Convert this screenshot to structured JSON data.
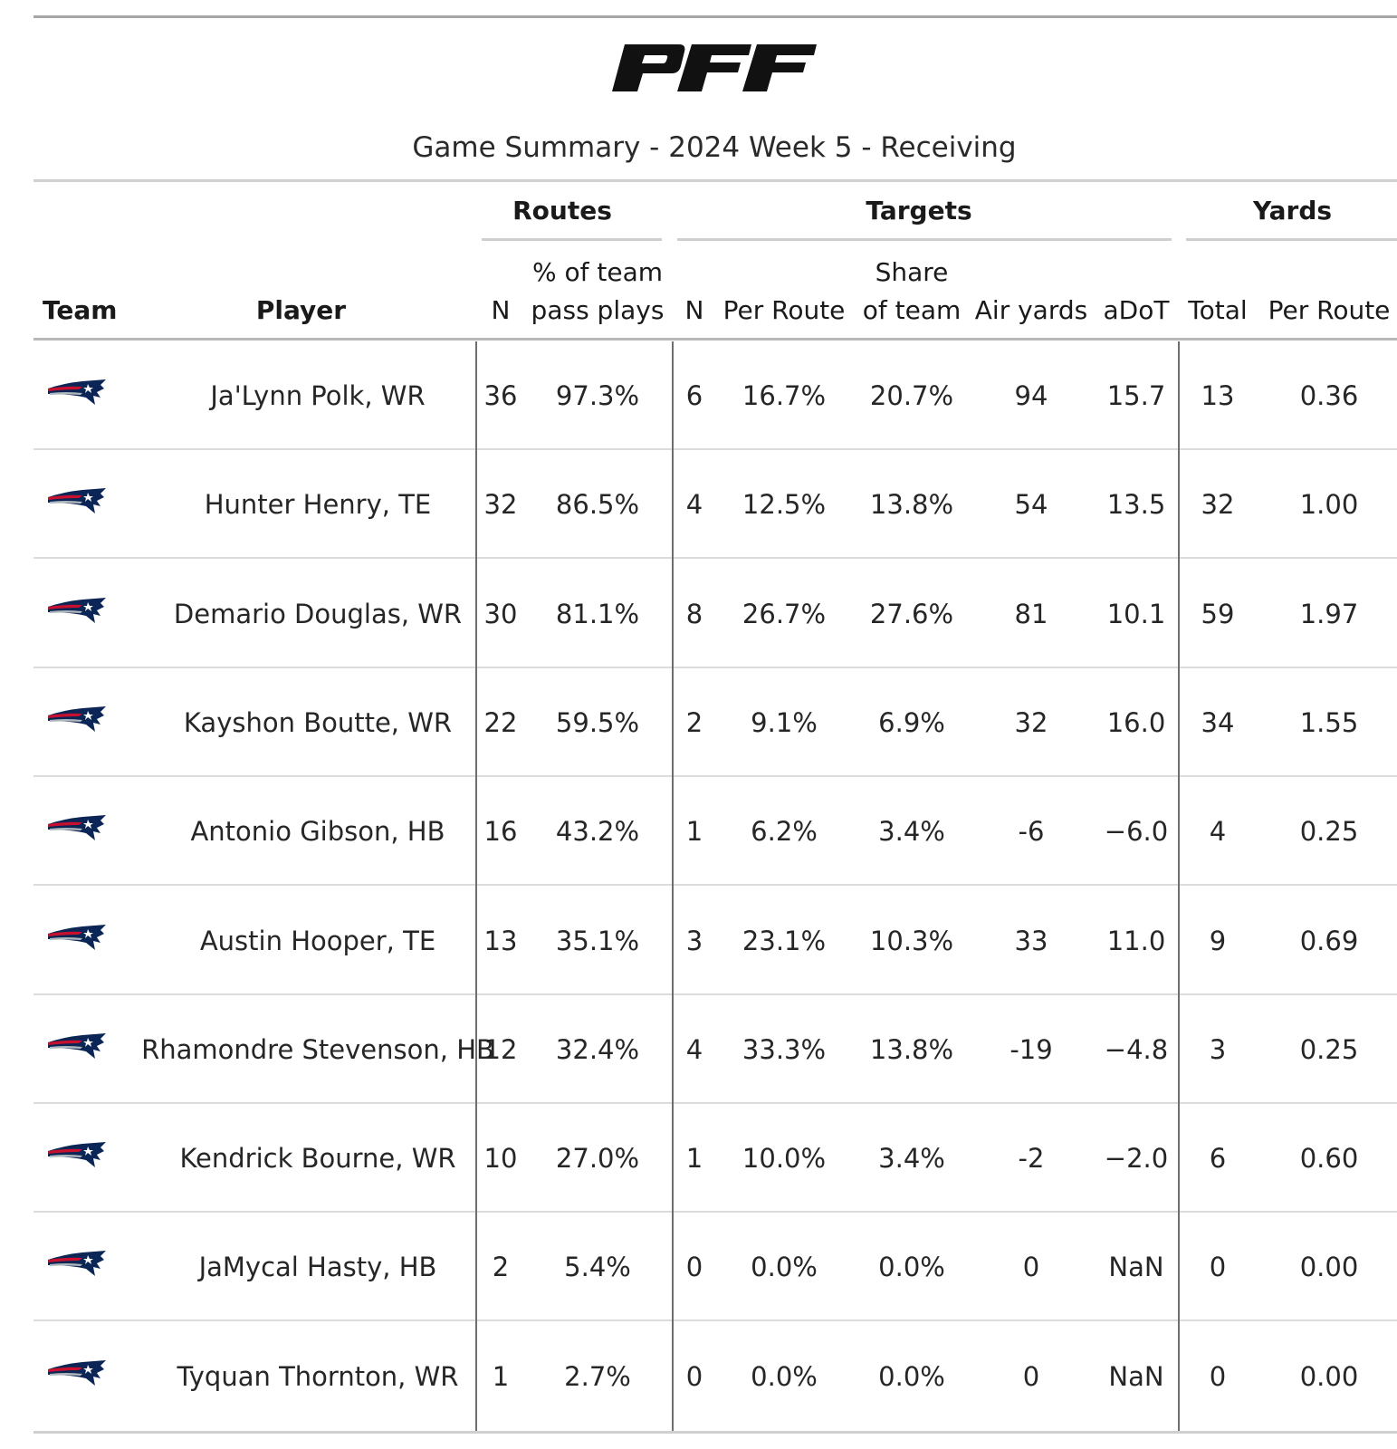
{
  "title": "Game Summary - 2024 Week 5 - Receiving",
  "colors": {
    "navy": "#0b2656",
    "red": "#c8102e",
    "silver": "#b0b7bc"
  },
  "chart_data": {
    "type": "table",
    "title": "Game Summary - 2024 Week 5 - Receiving",
    "column_groups": [
      {
        "label": "Routes"
      },
      {
        "label": "Targets"
      },
      {
        "label": "Yards"
      }
    ],
    "columns": {
      "team": "Team",
      "player": "Player",
      "routes_n": "N",
      "routes_pct_line1": "% of team",
      "routes_pct_line2": "pass plays",
      "targets_n": "N",
      "targets_per_route": "Per Route",
      "targets_share_line1": "Share",
      "targets_share_line2": "of team",
      "air_yards": "Air yards",
      "adot": "aDoT",
      "yards_total": "Total",
      "yards_per_route": "Per Route"
    },
    "rows": [
      {
        "team_logo": "patriots-logo-icon",
        "player": "Ja'Lynn Polk, WR",
        "routes_n": "36",
        "routes_pct": "97.3%",
        "targets_n": "6",
        "targets_per_route": "16.7%",
        "targets_share": "20.7%",
        "air_yards": "94",
        "adot": "15.7",
        "yards_total": "13",
        "yards_per_route": "0.36"
      },
      {
        "team_logo": "patriots-logo-icon",
        "player": "Hunter Henry, TE",
        "routes_n": "32",
        "routes_pct": "86.5%",
        "targets_n": "4",
        "targets_per_route": "12.5%",
        "targets_share": "13.8%",
        "air_yards": "54",
        "adot": "13.5",
        "yards_total": "32",
        "yards_per_route": "1.00"
      },
      {
        "team_logo": "patriots-logo-icon",
        "player": "Demario Douglas, WR",
        "routes_n": "30",
        "routes_pct": "81.1%",
        "targets_n": "8",
        "targets_per_route": "26.7%",
        "targets_share": "27.6%",
        "air_yards": "81",
        "adot": "10.1",
        "yards_total": "59",
        "yards_per_route": "1.97"
      },
      {
        "team_logo": "patriots-logo-icon",
        "player": "Kayshon Boutte, WR",
        "routes_n": "22",
        "routes_pct": "59.5%",
        "targets_n": "2",
        "targets_per_route": "9.1%",
        "targets_share": "6.9%",
        "air_yards": "32",
        "adot": "16.0",
        "yards_total": "34",
        "yards_per_route": "1.55"
      },
      {
        "team_logo": "patriots-logo-icon",
        "player": "Antonio Gibson, HB",
        "routes_n": "16",
        "routes_pct": "43.2%",
        "targets_n": "1",
        "targets_per_route": "6.2%",
        "targets_share": "3.4%",
        "air_yards": "-6",
        "adot": "−6.0",
        "yards_total": "4",
        "yards_per_route": "0.25"
      },
      {
        "team_logo": "patriots-logo-icon",
        "player": "Austin Hooper, TE",
        "routes_n": "13",
        "routes_pct": "35.1%",
        "targets_n": "3",
        "targets_per_route": "23.1%",
        "targets_share": "10.3%",
        "air_yards": "33",
        "adot": "11.0",
        "yards_total": "9",
        "yards_per_route": "0.69"
      },
      {
        "team_logo": "patriots-logo-icon",
        "player": "Rhamondre Stevenson, HB",
        "routes_n": "12",
        "routes_pct": "32.4%",
        "targets_n": "4",
        "targets_per_route": "33.3%",
        "targets_share": "13.8%",
        "air_yards": "-19",
        "adot": "−4.8",
        "yards_total": "3",
        "yards_per_route": "0.25"
      },
      {
        "team_logo": "patriots-logo-icon",
        "player": "Kendrick Bourne, WR",
        "routes_n": "10",
        "routes_pct": "27.0%",
        "targets_n": "1",
        "targets_per_route": "10.0%",
        "targets_share": "3.4%",
        "air_yards": "-2",
        "adot": "−2.0",
        "yards_total": "6",
        "yards_per_route": "0.60"
      },
      {
        "team_logo": "patriots-logo-icon",
        "player": "JaMycal Hasty, HB",
        "routes_n": "2",
        "routes_pct": "5.4%",
        "targets_n": "0",
        "targets_per_route": "0.0%",
        "targets_share": "0.0%",
        "air_yards": "0",
        "adot": "NaN",
        "yards_total": "0",
        "yards_per_route": "0.00"
      },
      {
        "team_logo": "patriots-logo-icon",
        "player": "Tyquan Thornton, WR",
        "routes_n": "1",
        "routes_pct": "2.7%",
        "targets_n": "0",
        "targets_per_route": "0.0%",
        "targets_share": "0.0%",
        "air_yards": "0",
        "adot": "NaN",
        "yards_total": "0",
        "yards_per_route": "0.00"
      }
    ]
  }
}
